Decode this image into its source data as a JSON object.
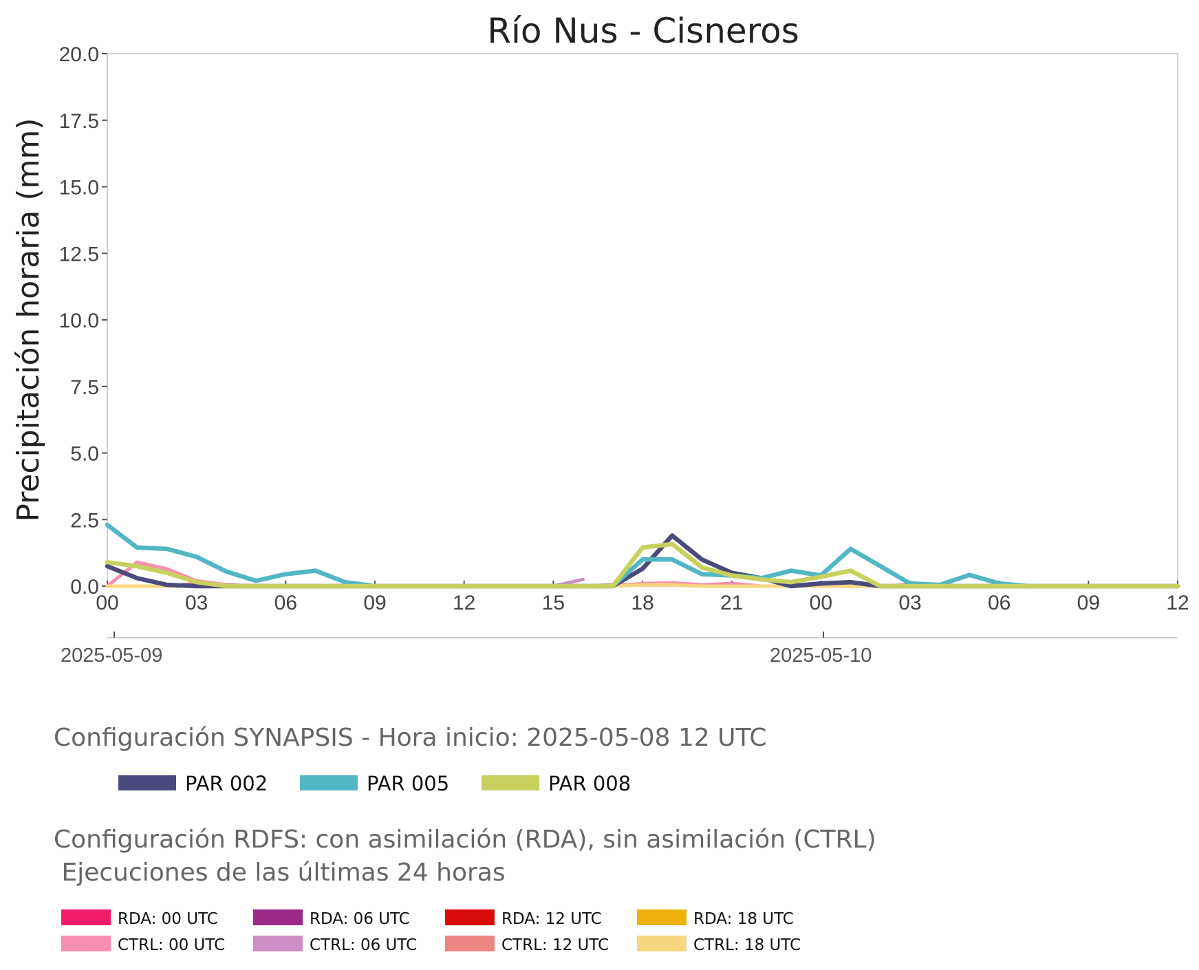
{
  "chart_data": {
    "type": "line",
    "title": "Río Nus - Cisneros",
    "ylabel": "Precipitación horaria (mm)",
    "xlabel": "",
    "ylim": [
      0,
      20
    ],
    "yticks": [
      "0.0",
      "2.5",
      "5.0",
      "7.5",
      "10.0",
      "12.5",
      "15.0",
      "17.5",
      "20.0"
    ],
    "x_start": "2025-05-09 00",
    "x_hours_span": 36,
    "x_tick_labels": [
      "00",
      "03",
      "06",
      "09",
      "12",
      "15",
      "18",
      "21",
      "00",
      "03",
      "06",
      "09",
      "12"
    ],
    "date_labels": [
      "2025-05-09",
      "2025-05-10"
    ],
    "grid": false,
    "series": [
      {
        "name": "PAR 002",
        "color": "#4a4b7c",
        "values": [
          0.75,
          0.3,
          0.05,
          0.0,
          0.0,
          0.0,
          0.0,
          0.0,
          0.0,
          0.0,
          0.0,
          0.0,
          0.0,
          0.0,
          0.0,
          0.0,
          0.0,
          0.0,
          0.65,
          1.9,
          1.0,
          0.5,
          0.3,
          0.0,
          0.1,
          0.15,
          0.0,
          0.0,
          0.0,
          0.0,
          0.0,
          0.0,
          0.0,
          0.0,
          0.0,
          0.0,
          0.0
        ]
      },
      {
        "name": "PAR 005",
        "color": "#52b7c4",
        "values": [
          2.3,
          1.45,
          1.4,
          1.1,
          0.55,
          0.2,
          0.45,
          0.58,
          0.15,
          0.0,
          0.0,
          0.0,
          0.0,
          0.0,
          0.0,
          0.0,
          0.0,
          0.0,
          1.0,
          1.0,
          0.45,
          0.4,
          0.3,
          0.58,
          0.4,
          1.4,
          0.75,
          0.1,
          0.05,
          0.42,
          0.1,
          0.0,
          0.0,
          0.0,
          0.0,
          0.0,
          0.0
        ]
      },
      {
        "name": "PAR 008",
        "color": "#c8d05e",
        "values": [
          0.9,
          0.75,
          0.5,
          0.15,
          0.0,
          0.0,
          0.0,
          0.0,
          0.0,
          0.0,
          0.0,
          0.0,
          0.0,
          0.0,
          0.0,
          0.0,
          0.0,
          0.0,
          1.45,
          1.58,
          0.7,
          0.4,
          0.25,
          0.15,
          0.35,
          0.58,
          0.0,
          0.0,
          0.0,
          0.0,
          0.0,
          0.0,
          0.0,
          0.0,
          0.0,
          0.0,
          0.0
        ]
      }
    ],
    "minor_series": [
      {
        "color": "#f78fb0",
        "values": [
          0.0,
          0.9,
          0.65,
          0.2,
          0.05,
          0.0,
          0.0,
          0.0,
          0.0,
          0.0,
          0.0,
          0.0,
          0.0,
          0.0,
          0.0,
          0.0,
          0.0,
          0.0,
          0.1,
          0.12,
          0.05,
          0.1,
          0.0,
          0.0,
          0.0,
          0.0,
          0.0,
          0.0,
          0.0
        ]
      },
      {
        "color": "#cf8fc4",
        "values": [
          0.0,
          0.0,
          0.0,
          0.0,
          0.0,
          0.0,
          0.0,
          0.0,
          0.0,
          0.0,
          0.0,
          0.0,
          0.0,
          0.0,
          0.0,
          0.0,
          0.25
        ]
      },
      {
        "color": "#ec8680",
        "values": [
          0.0,
          0.0,
          0.0,
          0.1,
          0.05,
          0.0,
          0.0,
          0.0,
          0.0,
          0.0,
          0.0,
          0.0,
          0.0,
          0.0,
          0.0,
          0.0,
          0.0,
          0.05,
          0.05,
          0.05,
          0.0,
          0.0,
          0.0,
          0.0,
          0.0,
          0.0,
          0.0,
          0.05,
          0.0,
          0.0,
          0.0
        ]
      },
      {
        "color": "#f6d680",
        "values": [
          0.0,
          0.0,
          0.0,
          0.0,
          0.0,
          0.0,
          0.0,
          0.0,
          0.0,
          0.0,
          0.0,
          0.0,
          0.0,
          0.0,
          0.0,
          0.0,
          0.0,
          0.0,
          0.05,
          0.05,
          0.0,
          0.0,
          0.0,
          0.0,
          0.0,
          0.0,
          0.0,
          0.0,
          0.0,
          0.0,
          0.0,
          0.0,
          0.0,
          0.0,
          0.0,
          0.0,
          0.0
        ]
      }
    ]
  },
  "legend": {
    "synapsis_title": "Configuración SYNAPSIS - Hora inicio: 2025-05-08 12 UTC",
    "synapsis_items": [
      {
        "label": "PAR 002",
        "color": "#4a4b7c"
      },
      {
        "label": "PAR 005",
        "color": "#52b7c4"
      },
      {
        "label": "PAR 008",
        "color": "#c8d05e"
      }
    ],
    "rdfs_title_line1": "Configuración RDFS: con asimilación (RDA), sin asimilación (CTRL)",
    "rdfs_title_line2": " Ejecuciones de las últimas 24 horas",
    "rdfs_items": [
      {
        "label": "RDA: 00 UTC",
        "color": "#ef1c6a"
      },
      {
        "label": "RDA: 06 UTC",
        "color": "#9b2a86"
      },
      {
        "label": "RDA: 12 UTC",
        "color": "#d80a0a"
      },
      {
        "label": "RDA: 18 UTC",
        "color": "#eeb10a"
      },
      {
        "label": "CTRL: 00 UTC",
        "color": "#f78fb0"
      },
      {
        "label": "CTRL: 06 UTC",
        "color": "#cf8fc4"
      },
      {
        "label": "CTRL: 12 UTC",
        "color": "#ec8680"
      },
      {
        "label": "CTRL: 18 UTC",
        "color": "#f6d680"
      }
    ]
  }
}
